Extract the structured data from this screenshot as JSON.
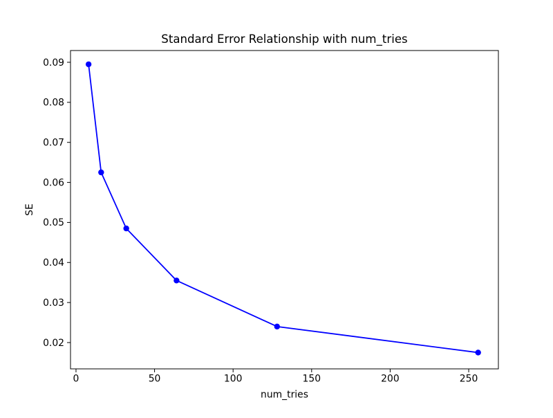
{
  "chart_data": {
    "type": "line",
    "title": "Standard Error Relationship with num_tries",
    "xlabel": "num_tries",
    "ylabel": "SE",
    "x": [
      8,
      16,
      32,
      64,
      128,
      256
    ],
    "y": [
      0.0895,
      0.0625,
      0.0485,
      0.0355,
      0.024,
      0.0175
    ],
    "xlim": [
      -3.5,
      268.9
    ],
    "ylim": [
      0.01343,
      0.09294
    ],
    "xticks": [
      0,
      50,
      100,
      150,
      200,
      250
    ],
    "xtick_labels": [
      "0",
      "50",
      "100",
      "150",
      "200",
      "250"
    ],
    "yticks": [
      0.02,
      0.03,
      0.04,
      0.05,
      0.06,
      0.07,
      0.08,
      0.09
    ],
    "ytick_labels": [
      "0.02",
      "0.03",
      "0.04",
      "0.05",
      "0.06",
      "0.07",
      "0.08",
      "0.09"
    ],
    "grid": false,
    "legend": null,
    "line_color": "#0000ff",
    "marker": "o",
    "marker_color": "#0000ff",
    "spine_color": "#000000",
    "background_color": "#ffffff"
  }
}
